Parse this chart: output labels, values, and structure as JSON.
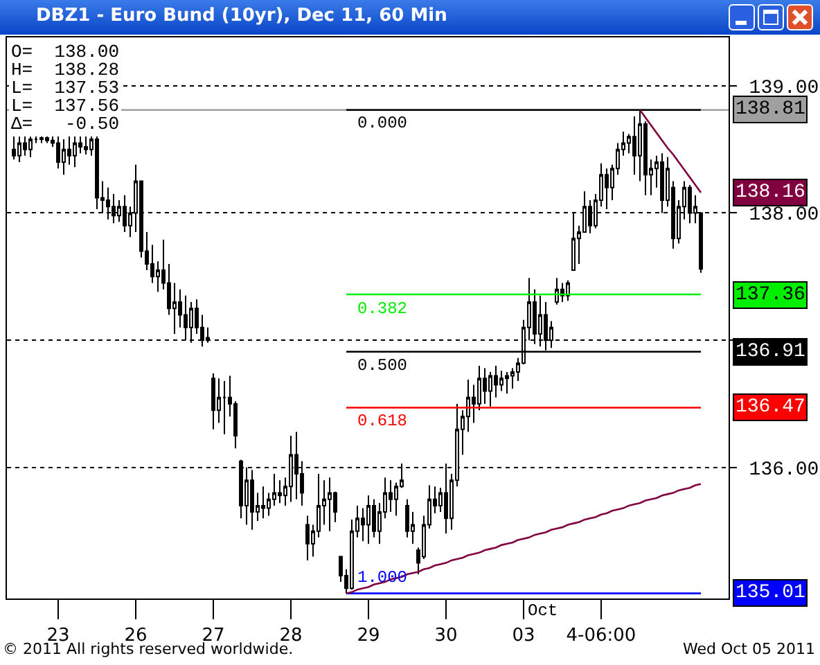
{
  "chart_data": {
    "type": "candlestick",
    "title": "DBZ1 - Euro Bund (10yr), Dec 11, 60 Min",
    "categories": [
      null,
      null,
      null,
      null,
      null,
      null,
      null,
      null,
      "23",
      null,
      null,
      null,
      null,
      null,
      null,
      null,
      null,
      null,
      null,
      null,
      null,
      null,
      "26",
      null,
      null,
      null,
      null,
      null,
      null,
      null,
      null,
      null,
      null,
      null,
      null,
      null,
      "27",
      null,
      null,
      null,
      null,
      null,
      null,
      null,
      null,
      null,
      null,
      null,
      null,
      null,
      "28",
      null,
      null,
      null,
      null,
      null,
      null,
      null,
      null,
      null,
      null,
      null,
      null,
      null,
      "29",
      null,
      null,
      null,
      null,
      null,
      null,
      null,
      null,
      null,
      null,
      null,
      null,
      null,
      "30",
      null,
      null,
      null,
      null,
      null,
      null,
      null,
      null,
      null,
      null,
      null,
      null,
      null,
      "03",
      null,
      null,
      null,
      null,
      null,
      null,
      null,
      null,
      null,
      null,
      null,
      null,
      null,
      "4-06:00",
      null,
      null,
      null,
      null,
      null,
      null,
      null,
      null,
      null,
      null,
      null,
      null,
      null,
      null,
      null,
      null,
      null,
      null
    ],
    "ohlc": [
      [
        138.5,
        138.61,
        138.42,
        138.45
      ],
      [
        138.45,
        138.6,
        138.4,
        138.55
      ],
      [
        138.55,
        138.61,
        138.45,
        138.5
      ],
      [
        138.5,
        138.6,
        138.44,
        138.58
      ],
      [
        138.58,
        138.61,
        138.55,
        138.58
      ],
      [
        138.58,
        138.61,
        138.55,
        138.59
      ],
      [
        138.59,
        138.61,
        138.55,
        138.57
      ],
      [
        138.57,
        138.61,
        138.52,
        138.55
      ],
      [
        138.55,
        138.61,
        138.35,
        138.4
      ],
      [
        138.4,
        138.58,
        138.3,
        138.5
      ],
      [
        138.5,
        138.61,
        138.38,
        138.45
      ],
      [
        138.45,
        138.61,
        138.36,
        138.55
      ],
      [
        138.55,
        138.61,
        138.47,
        138.52
      ],
      [
        138.52,
        138.61,
        138.46,
        138.5
      ],
      [
        138.5,
        138.61,
        138.45,
        138.58
      ],
      [
        138.58,
        138.61,
        138.03,
        138.12
      ],
      [
        138.12,
        138.25,
        138.0,
        138.1
      ],
      [
        138.1,
        138.2,
        137.95,
        138.05
      ],
      [
        138.05,
        138.15,
        137.92,
        137.98
      ],
      [
        137.98,
        138.1,
        137.93,
        138.05
      ],
      [
        138.05,
        138.14,
        137.85,
        137.9
      ],
      [
        137.9,
        138.05,
        137.81,
        138.0
      ],
      [
        138.0,
        138.38,
        137.85,
        138.25
      ],
      [
        138.25,
        138.25,
        137.65,
        137.7
      ],
      [
        137.7,
        137.85,
        137.55,
        137.6
      ],
      [
        137.6,
        137.75,
        137.45,
        137.5
      ],
      [
        137.5,
        137.62,
        137.38,
        137.55
      ],
      [
        137.55,
        137.79,
        137.4,
        137.45
      ],
      [
        137.45,
        137.6,
        137.2,
        137.25
      ],
      [
        137.25,
        137.45,
        137.05,
        137.3
      ],
      [
        137.3,
        137.4,
        137.1,
        137.2
      ],
      [
        137.2,
        137.35,
        137.0,
        137.1
      ],
      [
        137.1,
        137.3,
        136.98,
        137.25
      ],
      [
        137.25,
        137.32,
        137.05,
        137.1
      ],
      [
        137.1,
        137.2,
        136.95,
        137.0
      ],
      [
        137.0,
        137.1,
        136.98,
        137.02
      ],
      [
        136.7,
        136.74,
        136.3,
        136.45
      ],
      [
        136.45,
        136.7,
        136.35,
        136.55
      ],
      [
        136.55,
        136.68,
        136.26,
        136.55
      ],
      [
        136.55,
        136.72,
        136.4,
        136.5
      ],
      [
        136.5,
        136.52,
        136.15,
        136.25
      ],
      [
        136.05,
        136.06,
        135.6,
        135.7
      ],
      [
        135.7,
        136.0,
        135.55,
        135.9
      ],
      [
        135.9,
        135.98,
        135.51,
        135.65
      ],
      [
        135.65,
        135.8,
        135.58,
        135.7
      ],
      [
        135.7,
        135.85,
        135.6,
        135.68
      ],
      [
        135.68,
        135.8,
        135.62,
        135.75
      ],
      [
        135.75,
        135.95,
        135.7,
        135.8
      ],
      [
        135.8,
        135.9,
        135.72,
        135.78
      ],
      [
        135.78,
        135.92,
        135.7,
        135.85
      ],
      [
        135.85,
        136.25,
        135.73,
        136.1
      ],
      [
        136.1,
        136.28,
        135.75,
        135.95
      ],
      [
        135.95,
        136.05,
        135.7,
        135.8
      ],
      [
        135.55,
        135.62,
        135.27,
        135.4
      ],
      [
        135.4,
        135.55,
        135.3,
        135.5
      ],
      [
        135.5,
        135.95,
        135.45,
        135.7
      ],
      [
        135.7,
        135.9,
        135.55,
        135.75
      ],
      [
        135.75,
        135.92,
        135.5,
        135.8
      ],
      [
        135.8,
        135.81,
        135.57,
        135.65
      ],
      [
        135.3,
        135.3,
        135.1,
        135.15
      ],
      [
        135.15,
        135.2,
        135.01,
        135.05
      ],
      [
        135.05,
        135.59,
        135.04,
        135.5
      ],
      [
        135.5,
        135.7,
        135.45,
        135.6
      ],
      [
        135.6,
        135.68,
        135.42,
        135.55
      ],
      [
        135.55,
        135.78,
        135.4,
        135.7
      ],
      [
        135.7,
        135.75,
        135.45,
        135.5
      ],
      [
        135.5,
        135.72,
        135.4,
        135.65
      ],
      [
        135.65,
        135.92,
        135.6,
        135.8
      ],
      [
        135.8,
        135.9,
        135.65,
        135.75
      ],
      [
        135.75,
        135.88,
        135.62,
        135.85
      ],
      [
        135.85,
        136.03,
        135.84,
        135.9
      ],
      [
        135.7,
        135.75,
        135.45,
        135.5
      ],
      [
        135.5,
        135.65,
        135.4,
        135.55
      ],
      [
        135.35,
        135.37,
        135.16,
        135.25
      ],
      [
        135.3,
        135.62,
        135.28,
        135.55
      ],
      [
        135.55,
        135.86,
        135.52,
        135.75
      ],
      [
        135.75,
        135.85,
        135.64,
        135.7
      ],
      [
        135.7,
        135.84,
        135.65,
        135.8
      ],
      [
        135.8,
        136.03,
        135.48,
        135.6
      ],
      [
        135.6,
        135.95,
        135.51,
        135.9
      ],
      [
        135.9,
        136.5,
        135.85,
        136.3
      ],
      [
        136.3,
        136.45,
        136.1,
        136.4
      ],
      [
        136.4,
        136.69,
        136.28,
        136.55
      ],
      [
        136.55,
        136.65,
        136.35,
        136.5
      ],
      [
        136.5,
        136.8,
        136.45,
        136.7
      ],
      [
        136.7,
        136.78,
        136.5,
        136.6
      ],
      [
        136.6,
        136.75,
        136.48,
        136.72
      ],
      [
        136.72,
        136.8,
        136.55,
        136.65
      ],
      [
        136.65,
        136.76,
        136.6,
        136.7
      ],
      [
        136.7,
        136.75,
        136.58,
        136.72
      ],
      [
        136.72,
        136.78,
        136.62,
        136.75
      ],
      [
        136.75,
        136.86,
        136.68,
        136.82
      ],
      [
        136.82,
        137.16,
        136.81,
        137.1
      ],
      [
        137.1,
        137.49,
        137.0,
        137.3
      ],
      [
        137.3,
        137.4,
        136.97,
        137.05
      ],
      [
        137.05,
        137.35,
        136.95,
        137.2
      ],
      [
        137.2,
        137.3,
        136.92,
        137.0
      ],
      [
        137.0,
        137.15,
        136.94,
        137.1
      ],
      [
        137.3,
        137.49,
        137.28,
        137.4
      ],
      [
        137.4,
        137.45,
        137.3,
        137.35
      ],
      [
        137.35,
        137.47,
        137.31,
        137.45
      ],
      [
        137.55,
        138.0,
        137.55,
        137.8
      ],
      [
        137.8,
        137.9,
        137.6,
        137.85
      ],
      [
        137.85,
        138.17,
        137.85,
        138.05
      ],
      [
        138.05,
        138.1,
        137.84,
        137.9
      ],
      [
        137.9,
        138.15,
        137.88,
        138.1
      ],
      [
        138.1,
        138.39,
        138.05,
        138.3
      ],
      [
        138.3,
        138.35,
        138.03,
        138.2
      ],
      [
        138.2,
        138.38,
        138.1,
        138.35
      ],
      [
        138.35,
        138.55,
        138.3,
        138.5
      ],
      [
        138.5,
        138.64,
        138.45,
        138.55
      ],
      [
        138.55,
        138.62,
        138.47,
        138.6
      ],
      [
        138.6,
        138.76,
        138.3,
        138.45
      ],
      [
        138.45,
        138.81,
        138.25,
        138.7
      ],
      [
        138.7,
        138.72,
        138.14,
        138.3
      ],
      [
        138.3,
        138.42,
        138.14,
        138.35
      ],
      [
        138.35,
        138.45,
        138.2,
        138.4
      ],
      [
        138.4,
        138.47,
        138.0,
        138.1
      ],
      [
        138.1,
        138.44,
        138.05,
        138.35
      ],
      [
        138.2,
        138.25,
        137.72,
        137.8
      ],
      [
        137.8,
        138.1,
        137.76,
        138.05
      ],
      [
        138.05,
        138.25,
        137.95,
        138.2
      ],
      [
        138.2,
        138.22,
        137.92,
        138.0
      ],
      [
        138.0,
        138.14,
        137.92,
        138.05
      ],
      [
        138.0,
        138.0,
        137.53,
        137.56
      ]
    ],
    "series": [
      {
        "type": "line",
        "name": "0.000",
        "color": "#000000",
        "values": [
          null,
          null,
          null,
          null,
          null,
          null,
          null,
          null,
          null,
          null,
          null,
          null,
          null,
          null,
          null,
          null,
          null,
          null,
          null,
          null,
          null,
          null,
          null,
          null,
          null,
          null,
          null,
          null,
          null,
          null,
          null,
          null,
          null,
          null,
          null,
          null,
          null,
          null,
          null,
          null,
          null,
          null,
          null,
          null,
          null,
          null,
          null,
          null,
          null,
          null,
          null,
          null,
          null,
          null,
          null,
          null,
          null,
          null,
          null,
          null,
          138.81,
          138.81,
          138.81,
          138.81,
          138.81,
          138.81,
          138.81,
          138.81,
          138.81,
          138.81,
          138.81,
          138.81,
          138.81,
          138.81,
          138.81,
          138.81,
          138.81,
          138.81,
          138.81,
          138.81,
          138.81,
          138.81,
          138.81,
          138.81,
          138.81,
          138.81,
          138.81,
          138.81,
          138.81,
          138.81,
          138.81,
          138.81,
          138.81,
          138.81,
          138.81,
          138.81,
          138.81,
          138.81,
          138.81,
          138.81,
          138.81,
          138.81,
          138.81,
          138.81,
          138.81,
          138.81,
          138.81,
          138.81,
          138.81,
          138.81,
          138.81,
          138.81,
          138.81,
          138.81,
          138.81,
          138.81,
          138.81,
          138.81,
          138.81,
          138.81,
          138.81,
          138.81,
          138.81,
          138.81,
          138.81
        ]
      },
      {
        "type": "line",
        "name": "0.382",
        "color": "#00ee00",
        "values": [
          null,
          null,
          null,
          null,
          null,
          null,
          null,
          null,
          null,
          null,
          null,
          null,
          null,
          null,
          null,
          null,
          null,
          null,
          null,
          null,
          null,
          null,
          null,
          null,
          null,
          null,
          null,
          null,
          null,
          null,
          null,
          null,
          null,
          null,
          null,
          null,
          null,
          null,
          null,
          null,
          null,
          null,
          null,
          null,
          null,
          null,
          null,
          null,
          null,
          null,
          null,
          null,
          null,
          null,
          null,
          null,
          null,
          null,
          null,
          null,
          137.36,
          137.36,
          137.36,
          137.36,
          137.36,
          137.36,
          137.36,
          137.36,
          137.36,
          137.36,
          137.36,
          137.36,
          137.36,
          137.36,
          137.36,
          137.36,
          137.36,
          137.36,
          137.36,
          137.36,
          137.36,
          137.36,
          137.36,
          137.36,
          137.36,
          137.36,
          137.36,
          137.36,
          137.36,
          137.36,
          137.36,
          137.36,
          137.36,
          137.36,
          137.36,
          137.36,
          137.36,
          137.36,
          137.36,
          137.36,
          137.36,
          137.36,
          137.36,
          137.36,
          137.36,
          137.36,
          137.36,
          137.36,
          137.36,
          137.36,
          137.36,
          137.36,
          137.36,
          137.36,
          137.36,
          137.36,
          137.36,
          137.36,
          137.36,
          137.36,
          137.36,
          137.36,
          137.36,
          137.36,
          137.36
        ],
        "value_labels": [
          null,
          null,
          null,
          null,
          null,
          null,
          null,
          null,
          null,
          null,
          null,
          null,
          null,
          null,
          null,
          null,
          null,
          null,
          null,
          null,
          null,
          null,
          null,
          null,
          null,
          null,
          null,
          null,
          null,
          null,
          null,
          null,
          null,
          null,
          null,
          null,
          null,
          null,
          null,
          null,
          null,
          null,
          null,
          null,
          null,
          null,
          null,
          null,
          null,
          null,
          null,
          null,
          null,
          null,
          null,
          null,
          null,
          null,
          null,
          null,
          null,
          null,
          null,
          null,
          null,
          null,
          null,
          null,
          null,
          null,
          null,
          null,
          null,
          null,
          null,
          null,
          null,
          null,
          null,
          null,
          null,
          null,
          null,
          null,
          null,
          null,
          null,
          null,
          null,
          null,
          null,
          null,
          null,
          null,
          null,
          null,
          null,
          null,
          null,
          null,
          null,
          null,
          null,
          null,
          null,
          null,
          null,
          null,
          null,
          null,
          null,
          null,
          null,
          null,
          null,
          null,
          null,
          null,
          null,
          null,
          null,
          null,
          null,
          null,
          "137.36"
        ]
      },
      {
        "type": "line",
        "name": "0.500",
        "color": "#000000",
        "values": [
          null,
          null,
          null,
          null,
          null,
          null,
          null,
          null,
          null,
          null,
          null,
          null,
          null,
          null,
          null,
          null,
          null,
          null,
          null,
          null,
          null,
          null,
          null,
          null,
          null,
          null,
          null,
          null,
          null,
          null,
          null,
          null,
          null,
          null,
          null,
          null,
          null,
          null,
          null,
          null,
          null,
          null,
          null,
          null,
          null,
          null,
          null,
          null,
          null,
          null,
          null,
          null,
          null,
          null,
          null,
          null,
          null,
          null,
          null,
          null,
          136.91,
          136.91,
          136.91,
          136.91,
          136.91,
          136.91,
          136.91,
          136.91,
          136.91,
          136.91,
          136.91,
          136.91,
          136.91,
          136.91,
          136.91,
          136.91,
          136.91,
          136.91,
          136.91,
          136.91,
          136.91,
          136.91,
          136.91,
          136.91,
          136.91,
          136.91,
          136.91,
          136.91,
          136.91,
          136.91,
          136.91,
          136.91,
          136.91,
          136.91,
          136.91,
          136.91,
          136.91,
          136.91,
          136.91,
          136.91,
          136.91,
          136.91,
          136.91,
          136.91,
          136.91,
          136.91,
          136.91,
          136.91,
          136.91,
          136.91,
          136.91,
          136.91,
          136.91,
          136.91,
          136.91,
          136.91,
          136.91,
          136.91,
          136.91,
          136.91,
          136.91,
          136.91,
          136.91,
          136.91,
          136.91
        ],
        "value_labels": [
          null,
          null,
          null,
          null,
          null,
          null,
          null,
          null,
          null,
          null,
          null,
          null,
          null,
          null,
          null,
          null,
          null,
          null,
          null,
          null,
          null,
          null,
          null,
          null,
          null,
          null,
          null,
          null,
          null,
          null,
          null,
          null,
          null,
          null,
          null,
          null,
          null,
          null,
          null,
          null,
          null,
          null,
          null,
          null,
          null,
          null,
          null,
          null,
          null,
          null,
          null,
          null,
          null,
          null,
          null,
          null,
          null,
          null,
          null,
          null,
          null,
          null,
          null,
          null,
          null,
          null,
          null,
          null,
          null,
          null,
          null,
          null,
          null,
          null,
          null,
          null,
          null,
          null,
          null,
          null,
          null,
          null,
          null,
          null,
          null,
          null,
          null,
          null,
          null,
          null,
          null,
          null,
          null,
          null,
          null,
          null,
          null,
          null,
          null,
          null,
          null,
          null,
          null,
          null,
          null,
          null,
          null,
          null,
          null,
          null,
          null,
          null,
          null,
          null,
          null,
          null,
          null,
          null,
          null,
          null,
          null,
          null,
          null,
          null,
          "136.91"
        ]
      },
      {
        "type": "line",
        "name": "0.618",
        "color": "#ff0000",
        "values": [
          null,
          null,
          null,
          null,
          null,
          null,
          null,
          null,
          null,
          null,
          null,
          null,
          null,
          null,
          null,
          null,
          null,
          null,
          null,
          null,
          null,
          null,
          null,
          null,
          null,
          null,
          null,
          null,
          null,
          null,
          null,
          null,
          null,
          null,
          null,
          null,
          null,
          null,
          null,
          null,
          null,
          null,
          null,
          null,
          null,
          null,
          null,
          null,
          null,
          null,
          null,
          null,
          null,
          null,
          null,
          null,
          null,
          null,
          null,
          null,
          136.47,
          136.47,
          136.47,
          136.47,
          136.47,
          136.47,
          136.47,
          136.47,
          136.47,
          136.47,
          136.47,
          136.47,
          136.47,
          136.47,
          136.47,
          136.47,
          136.47,
          136.47,
          136.47,
          136.47,
          136.47,
          136.47,
          136.47,
          136.47,
          136.47,
          136.47,
          136.47,
          136.47,
          136.47,
          136.47,
          136.47,
          136.47,
          136.47,
          136.47,
          136.47,
          136.47,
          136.47,
          136.47,
          136.47,
          136.47,
          136.47,
          136.47,
          136.47,
          136.47,
          136.47,
          136.47,
          136.47,
          136.47,
          136.47,
          136.47,
          136.47,
          136.47,
          136.47,
          136.47,
          136.47,
          136.47,
          136.47,
          136.47,
          136.47,
          136.47,
          136.47,
          136.47,
          136.47,
          136.47,
          136.47
        ],
        "value_labels": [
          null,
          null,
          null,
          null,
          null,
          null,
          null,
          null,
          null,
          null,
          null,
          null,
          null,
          null,
          null,
          null,
          null,
          null,
          null,
          null,
          null,
          null,
          null,
          null,
          null,
          null,
          null,
          null,
          null,
          null,
          null,
          null,
          null,
          null,
          null,
          null,
          null,
          null,
          null,
          null,
          null,
          null,
          null,
          null,
          null,
          null,
          null,
          null,
          null,
          null,
          null,
          null,
          null,
          null,
          null,
          null,
          null,
          null,
          null,
          null,
          null,
          null,
          null,
          null,
          null,
          null,
          null,
          null,
          null,
          null,
          null,
          null,
          null,
          null,
          null,
          null,
          null,
          null,
          null,
          null,
          null,
          null,
          null,
          null,
          null,
          null,
          null,
          null,
          null,
          null,
          null,
          null,
          null,
          null,
          null,
          null,
          null,
          null,
          null,
          null,
          null,
          null,
          null,
          null,
          null,
          null,
          null,
          null,
          null,
          null,
          null,
          null,
          null,
          null,
          null,
          null,
          null,
          null,
          null,
          null,
          null,
          null,
          null,
          null,
          "136.47"
        ]
      },
      {
        "type": "line",
        "name": "1.000",
        "color": "#0000ff",
        "values": [
          null,
          null,
          null,
          null,
          null,
          null,
          null,
          null,
          null,
          null,
          null,
          null,
          null,
          null,
          null,
          null,
          null,
          null,
          null,
          null,
          null,
          null,
          null,
          null,
          null,
          null,
          null,
          null,
          null,
          null,
          null,
          null,
          null,
          null,
          null,
          null,
          null,
          null,
          null,
          null,
          null,
          null,
          null,
          null,
          null,
          null,
          null,
          null,
          null,
          null,
          null,
          null,
          null,
          null,
          null,
          null,
          null,
          null,
          null,
          null,
          135.01,
          135.01,
          135.01,
          135.01,
          135.01,
          135.01,
          135.01,
          135.01,
          135.01,
          135.01,
          135.01,
          135.01,
          135.01,
          135.01,
          135.01,
          135.01,
          135.01,
          135.01,
          135.01,
          135.01,
          135.01,
          135.01,
          135.01,
          135.01,
          135.01,
          135.01,
          135.01,
          135.01,
          135.01,
          135.01,
          135.01,
          135.01,
          135.01,
          135.01,
          135.01,
          135.01,
          135.01,
          135.01,
          135.01,
          135.01,
          135.01,
          135.01,
          135.01,
          135.01,
          135.01,
          135.01,
          135.01,
          135.01,
          135.01,
          135.01,
          135.01,
          135.01,
          135.01,
          135.01,
          135.01,
          135.01,
          135.01,
          135.01,
          135.01,
          135.01,
          135.01,
          135.01,
          135.01,
          135.01,
          135.01
        ],
        "value_labels": [
          null,
          null,
          null,
          null,
          null,
          null,
          null,
          null,
          null,
          null,
          null,
          null,
          null,
          null,
          null,
          null,
          null,
          null,
          null,
          null,
          null,
          null,
          null,
          null,
          null,
          null,
          null,
          null,
          null,
          null,
          null,
          null,
          null,
          null,
          null,
          null,
          null,
          null,
          null,
          null,
          null,
          null,
          null,
          null,
          null,
          null,
          null,
          null,
          null,
          null,
          null,
          null,
          null,
          null,
          null,
          null,
          null,
          null,
          null,
          null,
          null,
          null,
          null,
          null,
          null,
          null,
          null,
          null,
          null,
          null,
          null,
          null,
          null,
          null,
          null,
          null,
          null,
          null,
          null,
          null,
          null,
          null,
          null,
          null,
          null,
          null,
          null,
          null,
          null,
          null,
          null,
          null,
          null,
          null,
          null,
          null,
          null,
          null,
          null,
          null,
          null,
          null,
          null,
          null,
          null,
          null,
          null,
          null,
          null,
          null,
          null,
          null,
          null,
          null,
          null,
          null,
          null,
          null,
          null,
          null,
          null,
          null,
          null,
          null,
          "135.01"
        ]
      },
      {
        "type": "line",
        "color": "#800040",
        "values": [
          null,
          null,
          null,
          null,
          null,
          null,
          null,
          null,
          null,
          null,
          null,
          null,
          null,
          null,
          null,
          null,
          null,
          null,
          null,
          null,
          null,
          null,
          null,
          null,
          null,
          null,
          null,
          null,
          null,
          null,
          null,
          null,
          null,
          null,
          null,
          null,
          null,
          null,
          null,
          null,
          null,
          null,
          null,
          null,
          null,
          null,
          null,
          null,
          null,
          null,
          null,
          null,
          null,
          null,
          null,
          null,
          null,
          null,
          null,
          null,
          null,
          null,
          null,
          null,
          null,
          null,
          null,
          null,
          null,
          null,
          null,
          null,
          null,
          null,
          null,
          null,
          null,
          null,
          null,
          null,
          null,
          null,
          null,
          null,
          null,
          null,
          null,
          null,
          null,
          null,
          null,
          null,
          null,
          null,
          null,
          null,
          null,
          null,
          null,
          null,
          null,
          null,
          null,
          null,
          null,
          null,
          null,
          null,
          null,
          null,
          null,
          null,
          null,
          138.81,
          138.75,
          138.69,
          138.63,
          138.57,
          138.51,
          138.46,
          138.4,
          138.34,
          138.28,
          138.22,
          138.16
        ],
        "value_labels": [
          null,
          null,
          null,
          null,
          null,
          null,
          null,
          null,
          null,
          null,
          null,
          null,
          null,
          null,
          null,
          null,
          null,
          null,
          null,
          null,
          null,
          null,
          null,
          null,
          null,
          null,
          null,
          null,
          null,
          null,
          null,
          null,
          null,
          null,
          null,
          null,
          null,
          null,
          null,
          null,
          null,
          null,
          null,
          null,
          null,
          null,
          null,
          null,
          null,
          null,
          null,
          null,
          null,
          null,
          null,
          null,
          null,
          null,
          null,
          null,
          null,
          null,
          null,
          null,
          null,
          null,
          null,
          null,
          null,
          null,
          null,
          null,
          null,
          null,
          null,
          null,
          null,
          null,
          null,
          null,
          null,
          null,
          null,
          null,
          null,
          null,
          null,
          null,
          null,
          null,
          null,
          null,
          null,
          null,
          null,
          null,
          null,
          null,
          null,
          null,
          null,
          null,
          null,
          null,
          null,
          null,
          null,
          null,
          null,
          null,
          null,
          null,
          null,
          null,
          null,
          null,
          null,
          null,
          null,
          null,
          null,
          null,
          null,
          null,
          "138.16"
        ]
      },
      {
        "type": "line",
        "color": "#800040",
        "values": [
          null,
          null,
          null,
          null,
          null,
          null,
          null,
          null,
          null,
          null,
          null,
          null,
          null,
          null,
          null,
          null,
          null,
          null,
          null,
          null,
          null,
          null,
          null,
          null,
          null,
          null,
          null,
          null,
          null,
          null,
          null,
          null,
          null,
          null,
          null,
          null,
          null,
          null,
          null,
          null,
          null,
          null,
          null,
          null,
          null,
          null,
          null,
          null,
          null,
          null,
          null,
          null,
          null,
          null,
          null,
          null,
          null,
          null,
          null,
          null,
          135.01,
          135.02,
          135.04,
          135.05,
          135.06,
          135.08,
          135.09,
          135.1,
          135.12,
          135.13,
          135.14,
          135.16,
          135.17,
          135.18,
          135.2,
          135.21,
          135.23,
          135.24,
          135.25,
          135.27,
          135.28,
          135.29,
          135.31,
          135.32,
          135.33,
          135.35,
          135.36,
          135.37,
          135.39,
          135.4,
          135.41,
          135.43,
          135.44,
          135.45,
          135.47,
          135.48,
          135.49,
          135.51,
          135.52,
          135.53,
          135.55,
          135.56,
          135.57,
          135.59,
          135.6,
          135.61,
          135.63,
          135.64,
          135.66,
          135.67,
          135.68,
          135.7,
          135.71,
          135.72,
          135.74,
          135.75,
          135.76,
          135.78,
          135.79,
          135.8,
          135.82,
          135.83,
          135.84,
          135.86,
          135.87
        ]
      }
    ],
    "ref_lines": [
      {
        "axis": "y",
        "value": 138.81,
        "label": "138.81",
        "color": "#a0a0a0"
      }
    ],
    "ylim": [
      134.97,
      139.38
    ],
    "yticks": [
      {
        "value": 136,
        "label": "136.00"
      },
      {
        "value": 137,
        "label": null
      },
      {
        "value": 138,
        "label": "138.00"
      },
      {
        "value": 139,
        "label": "139.00"
      }
    ],
    "grid": "y",
    "annotations": [
      "O=  138.00",
      "H=  138.28",
      "L=  137.53",
      "L=  137.56",
      "Δ=   -0.50",
      "Oct",
      "© 2011 All rights reserved worldwide.",
      "Wed Oct 05 2011"
    ]
  }
}
